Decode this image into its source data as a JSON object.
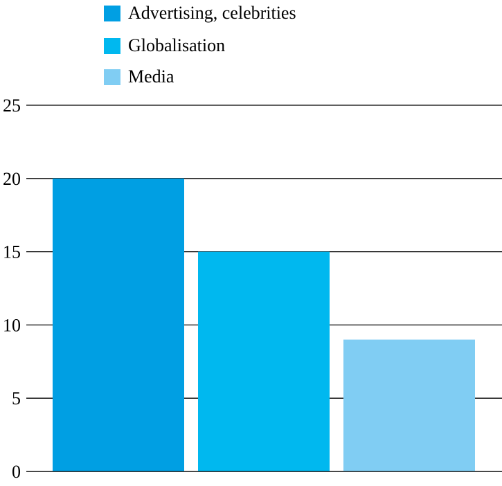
{
  "chart_data": {
    "type": "bar",
    "categories": [
      "Advertising, celebrities",
      "Globalisation",
      "Media"
    ],
    "values": [
      20,
      15,
      9
    ],
    "colors": [
      "#009fe3",
      "#00b8ef",
      "#80cdf3"
    ],
    "title": "",
    "xlabel": "",
    "ylabel": "",
    "ylim": [
      0,
      25
    ],
    "yticks": [
      0,
      5,
      10,
      15,
      20,
      25
    ],
    "grid": true,
    "legend": {
      "placement": "top-center",
      "entries": [
        "Advertising, celebrities",
        "Globalisation",
        "Media"
      ]
    }
  }
}
